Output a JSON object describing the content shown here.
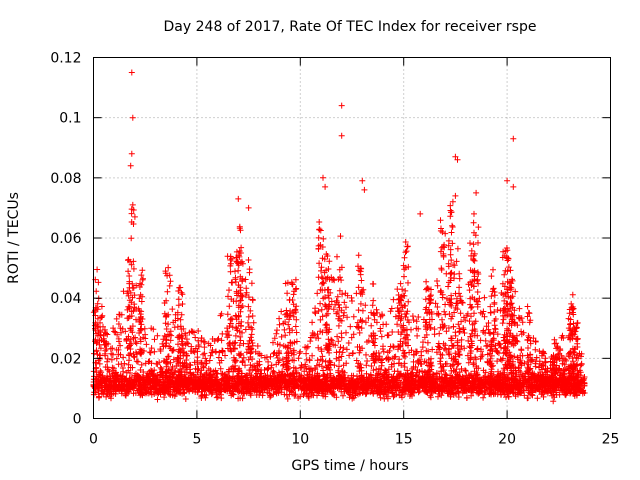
{
  "chart_data": {
    "type": "scatter",
    "title": "Day 248 of 2017, Rate Of TEC Index for receiver rspe",
    "xlabel": "GPS time / hours",
    "ylabel": "ROTI / TECUs",
    "xlim": [
      0,
      25
    ],
    "ylim": [
      0,
      0.12
    ],
    "xticks": [
      0,
      5,
      10,
      15,
      20,
      25
    ],
    "yticks": [
      0,
      0.02,
      0.04,
      0.06,
      0.08,
      0.1,
      0.12
    ],
    "xtick_labels": [
      "0",
      "5",
      "10",
      "15",
      "20",
      "25"
    ],
    "ytick_labels": [
      "0",
      "0.02",
      "0.04",
      "0.06",
      "0.08",
      "0.1",
      "0.12"
    ],
    "grid": true,
    "marker": "+",
    "marker_color": "#ff0000",
    "series": [
      {
        "name": "ROTI",
        "note": "dense point cloud across 0-24 h; baseline ~0.005-0.02 TECU/s with spikes listed as peaks",
        "peaks": [
          {
            "x": 1.85,
            "y": 0.115
          },
          {
            "x": 1.9,
            "y": 0.1
          },
          {
            "x": 1.85,
            "y": 0.088
          },
          {
            "x": 1.8,
            "y": 0.084
          },
          {
            "x": 1.9,
            "y": 0.071
          },
          {
            "x": 2.0,
            "y": 0.067
          },
          {
            "x": 7.0,
            "y": 0.073
          },
          {
            "x": 7.5,
            "y": 0.07
          },
          {
            "x": 11.1,
            "y": 0.08
          },
          {
            "x": 11.2,
            "y": 0.077
          },
          {
            "x": 12.0,
            "y": 0.104
          },
          {
            "x": 12.0,
            "y": 0.094
          },
          {
            "x": 13.0,
            "y": 0.079
          },
          {
            "x": 13.1,
            "y": 0.076
          },
          {
            "x": 17.5,
            "y": 0.087
          },
          {
            "x": 17.6,
            "y": 0.086
          },
          {
            "x": 17.5,
            "y": 0.074
          },
          {
            "x": 18.5,
            "y": 0.075
          },
          {
            "x": 18.4,
            "y": 0.068
          },
          {
            "x": 20.0,
            "y": 0.079
          },
          {
            "x": 20.3,
            "y": 0.077
          },
          {
            "x": 20.3,
            "y": 0.093
          },
          {
            "x": 15.8,
            "y": 0.068
          }
        ]
      }
    ]
  }
}
